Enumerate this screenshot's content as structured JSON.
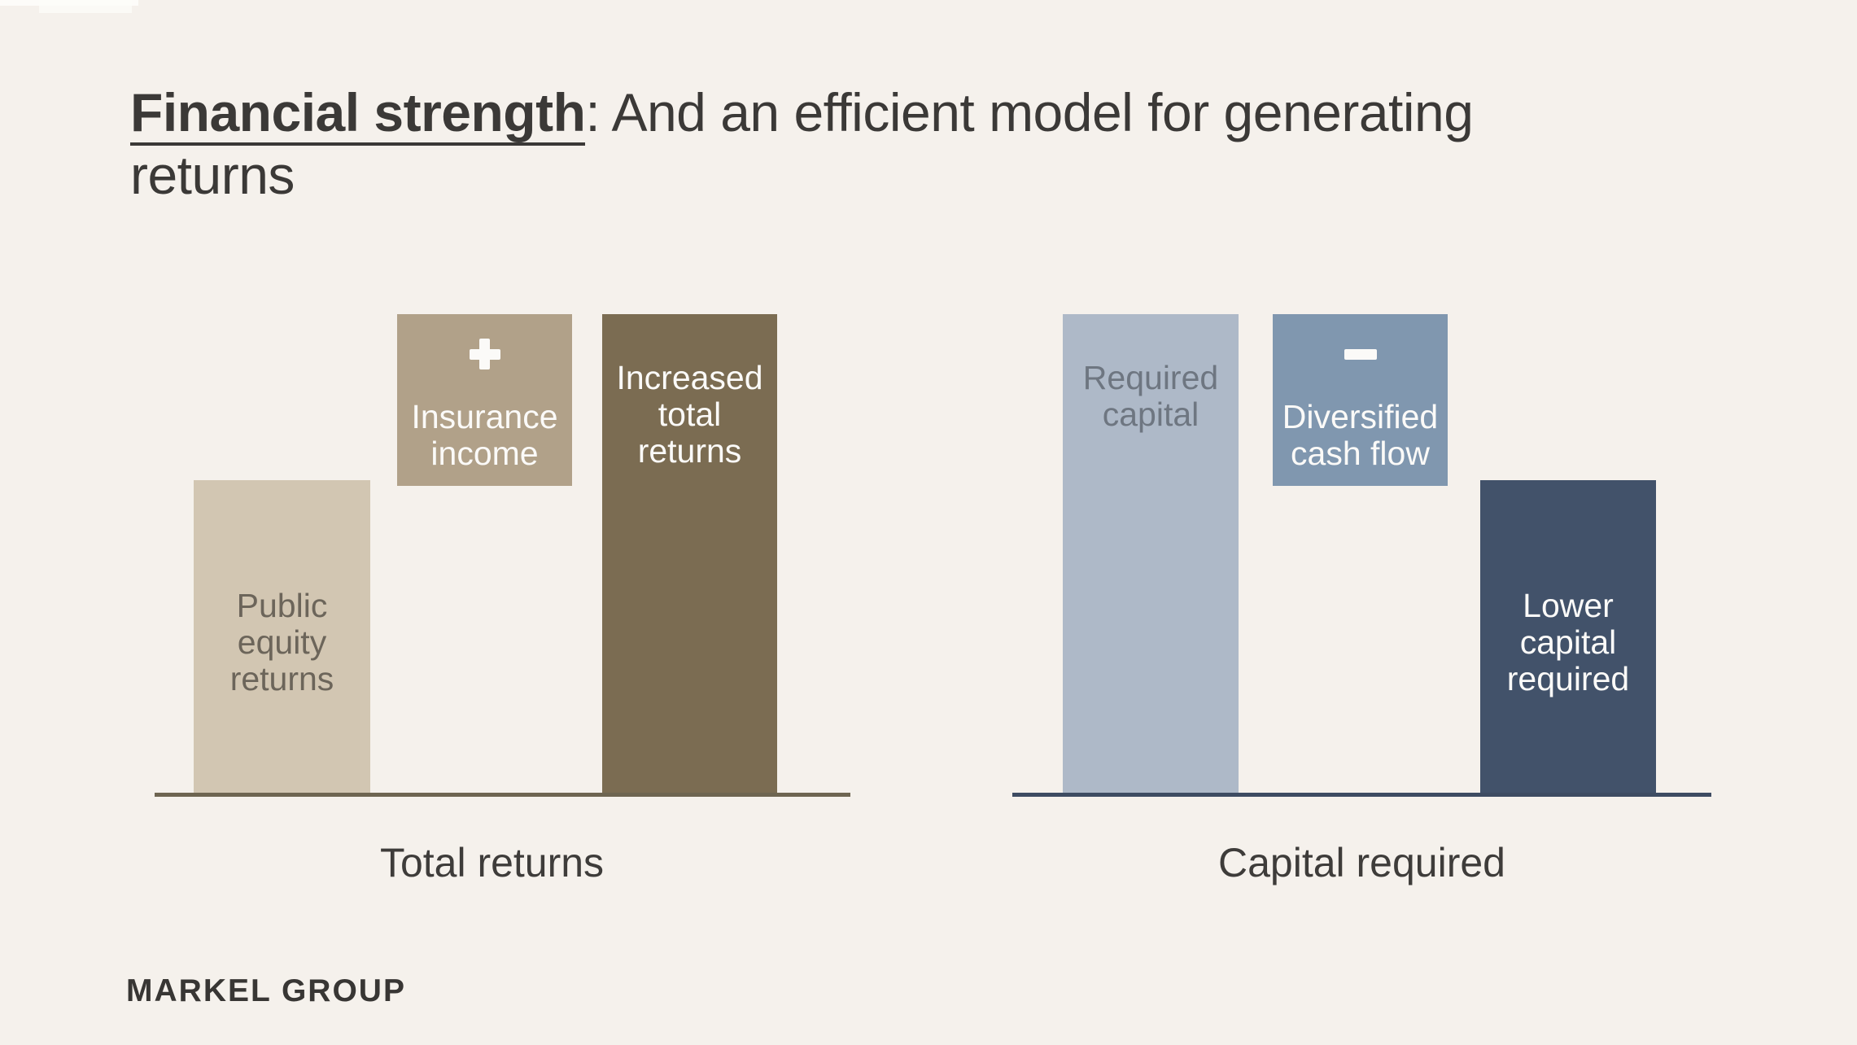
{
  "title": {
    "emphasis": "Financial strength",
    "rest": ": And an efficient model for generating returns"
  },
  "footer": {
    "logo": "MARKEL GROUP"
  },
  "charts": {
    "left": {
      "axis_label": "Total returns",
      "bars": [
        {
          "name": "public-equity-returns",
          "label": "Public\nequity\nreturns",
          "icon": null
        },
        {
          "name": "insurance-income",
          "label": "Insurance\nincome",
          "icon": "plus-icon"
        },
        {
          "name": "increased-total-returns",
          "label": "Increased\ntotal\nreturns",
          "icon": null
        }
      ]
    },
    "right": {
      "axis_label": "Capital required",
      "bars": [
        {
          "name": "required-capital",
          "label": "Required\ncapital",
          "icon": null
        },
        {
          "name": "diversified-cash-flow",
          "label": "Diversified\ncash flow",
          "icon": "minus-icon"
        },
        {
          "name": "lower-capital-required",
          "label": "Lower\ncapital\nrequired",
          "icon": null
        }
      ]
    }
  },
  "colors": {
    "background": "#f5f1ec",
    "title_text": "#3b3937",
    "axis_label_text": "#3e3c3a",
    "text_on_dark_bars": "#fbfaf8",
    "logo_text": "#383634",
    "left_chart": {
      "bar_light": "#d2c6b2",
      "bar_mid": "#b1a189",
      "bar_dark": "#7b6c52",
      "text_on_light_bar": "#6c655a",
      "baseline": "#6e6551"
    },
    "right_chart": {
      "bar_light": "#aeb9c8",
      "bar_mid": "#8097af",
      "bar_dark": "#42526a",
      "text_on_light_bar": "#6e7681",
      "baseline": "#3e4c62"
    }
  },
  "chart_data": [
    {
      "type": "bar",
      "title": "Total returns",
      "categories": [
        "Public equity returns",
        "Insurance income",
        "Increased total returns"
      ],
      "values": [
        65,
        36,
        100
      ],
      "series_notes": "Conceptual waterfall: public equity returns + insurance income (floating block with plus sign) = increased total returns; no numeric axis or gridlines shown, values are relative heights normalized to 100",
      "bar_colors": [
        "#d2c6b2",
        "#b1a189",
        "#7b6c52"
      ],
      "xlabel": "Total returns",
      "ylabel": "",
      "legend": "none",
      "grid": false
    },
    {
      "type": "bar",
      "title": "Capital required",
      "categories": [
        "Required capital",
        "Diversified cash flow",
        "Lower capital required"
      ],
      "values": [
        100,
        -36,
        65
      ],
      "series_notes": "Conceptual waterfall: required capital − diversified cash flow (floating block with minus sign) = lower capital required; no numeric axis or gridlines shown, values are relative heights normalized to 100",
      "bar_colors": [
        "#aeb9c8",
        "#8097af",
        "#42526a"
      ],
      "xlabel": "Capital required",
      "ylabel": "",
      "legend": "none",
      "grid": false
    }
  ]
}
